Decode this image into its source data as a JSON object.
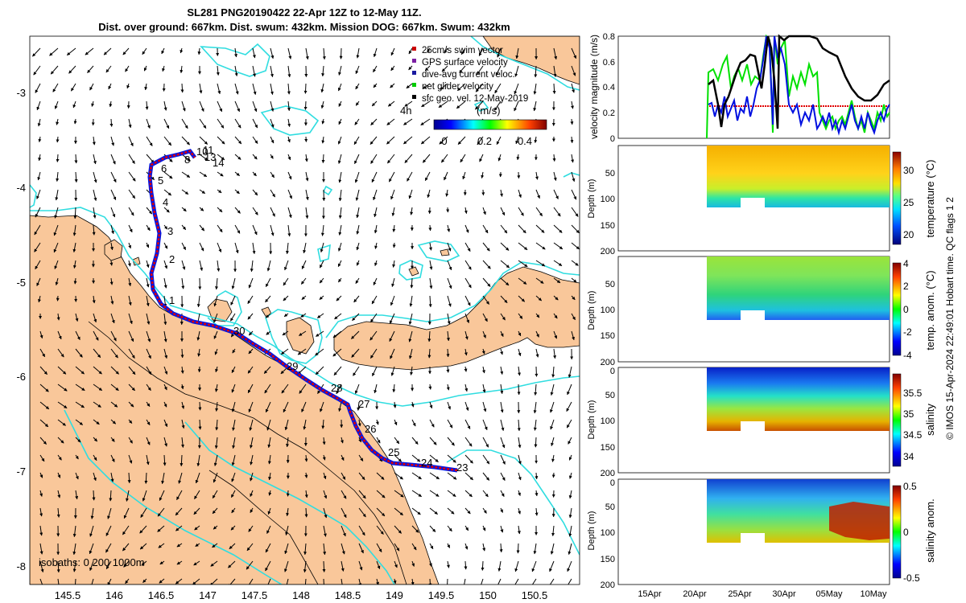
{
  "title": {
    "line1": "SL281 PNG20190422 22-Apr 12Z to 12-May 11Z.",
    "line2": "Dist. over ground: 667km. Dist. swum: 432km. Mission DOG: 667km. Swum: 432km"
  },
  "map": {
    "xticks": [
      "145.5",
      "146",
      "146.5",
      "147",
      "147.5",
      "148",
      "148.5",
      "149",
      "149.5",
      "150",
      "150.5"
    ],
    "yticks": [
      "-3",
      "-4",
      "-5",
      "-6",
      "-7",
      "-8"
    ],
    "legend": [
      {
        "label": "25cm/s swim vector",
        "color": "#cc0000"
      },
      {
        "label": "GPS surface velocity",
        "color": "#7b1fa2"
      },
      {
        "label": "dive-avg current veloc.",
        "color": "#1a1aa0"
      },
      {
        "label": "net glider velocity",
        "color": "#00cc00"
      },
      {
        "label": "sfc geo. vel. 12-May-2019",
        "color": "#000000"
      }
    ],
    "interval_label": "4h",
    "colorbar": {
      "unit": "(m/s)",
      "ticks": [
        "0",
        "0.2",
        "0.4"
      ]
    },
    "day_labels": [
      "1",
      "2",
      "3",
      "4",
      "5",
      "6",
      "8",
      "10",
      "11",
      "13",
      "14",
      "23",
      "24",
      "25",
      "26",
      "27",
      "28",
      "29",
      "30"
    ],
    "isobath_label": "isobaths: 0  200  1000m",
    "colors": {
      "land": "#f9c79a",
      "isobath200": "#30dde0",
      "track_red": "#e00000",
      "track_blue": "#0016e6"
    }
  },
  "panels": {
    "velocity": {
      "ylabel": "velocity magnitude (m/s)",
      "yticks": [
        "0",
        "0.2",
        "0.4",
        "0.6",
        "0.8"
      ]
    },
    "temperature": {
      "ylabel": "temperature (°C)",
      "cticks": [
        "20",
        "25",
        "30"
      ]
    },
    "temp_anom": {
      "ylabel": "temp. anom. (°C)",
      "cticks": [
        "-4",
        "-2",
        "0",
        "2",
        "4"
      ]
    },
    "salinity": {
      "ylabel": "salinity",
      "cticks": [
        "34",
        "34.5",
        "35",
        "35.5"
      ]
    },
    "sal_anom": {
      "ylabel": "salinity anom.",
      "cticks": [
        "-0.5",
        "0",
        "0.5"
      ]
    },
    "depth_label": "Depth (m)",
    "depth_ticks": [
      "0",
      "50",
      "100",
      "150",
      "200"
    ],
    "time_ticks": [
      "15Apr",
      "20Apr",
      "25Apr",
      "30Apr",
      "05May",
      "10May"
    ]
  },
  "footer": "© IMOS 15-Apr-2024 22:49:01 Hobart time. QC flags 1  2"
}
